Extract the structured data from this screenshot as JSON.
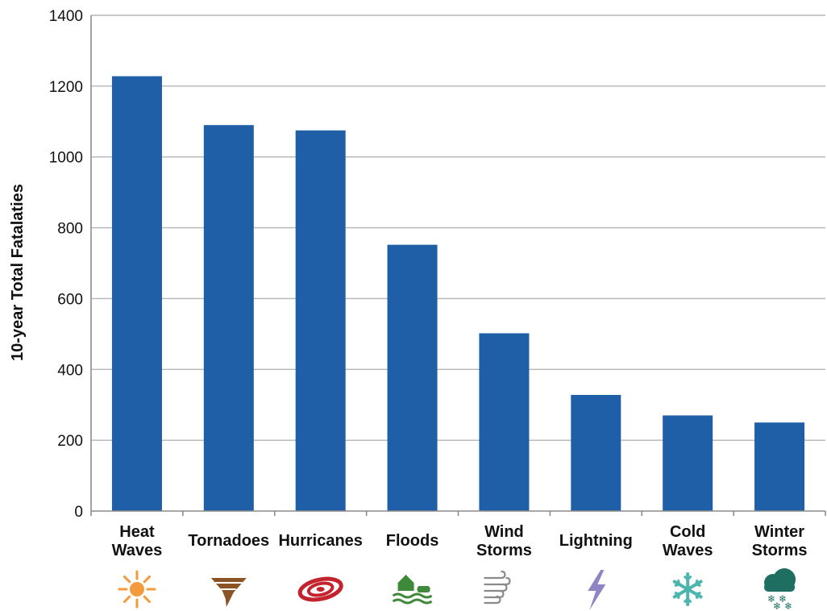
{
  "chart_data": {
    "type": "bar",
    "ylabel": "10-year Total Fatalaties",
    "xlabel": "",
    "title": "",
    "ylim": [
      0,
      1400
    ],
    "yticks": [
      0,
      200,
      400,
      600,
      800,
      1000,
      1200,
      1400
    ],
    "grid": true,
    "legend": "none",
    "categories": [
      [
        "Heat",
        "Waves"
      ],
      [
        "Tornadoes"
      ],
      [
        "Hurricanes"
      ],
      [
        "Floods"
      ],
      [
        "Wind",
        "Storms"
      ],
      [
        "Lightning"
      ],
      [
        "Cold",
        "Waves"
      ],
      [
        "Winter",
        "Storms"
      ]
    ],
    "values": [
      1228,
      1090,
      1075,
      752,
      502,
      328,
      270,
      250
    ],
    "bar_color": "#1f5fa8",
    "icons": [
      {
        "name": "sun-icon",
        "color": "#f39a3d"
      },
      {
        "name": "tornado-icon",
        "color": "#8a5426"
      },
      {
        "name": "hurricane-icon",
        "color": "#c4232e"
      },
      {
        "name": "flood-icon",
        "color": "#3f8a3a"
      },
      {
        "name": "wind-icon",
        "color": "#8a8a8a"
      },
      {
        "name": "lightning-icon",
        "color": "#8f84c4"
      },
      {
        "name": "snowflake-icon",
        "color": "#4cb5ae"
      },
      {
        "name": "snow-cloud-icon",
        "color": "#1f6e62"
      }
    ]
  }
}
